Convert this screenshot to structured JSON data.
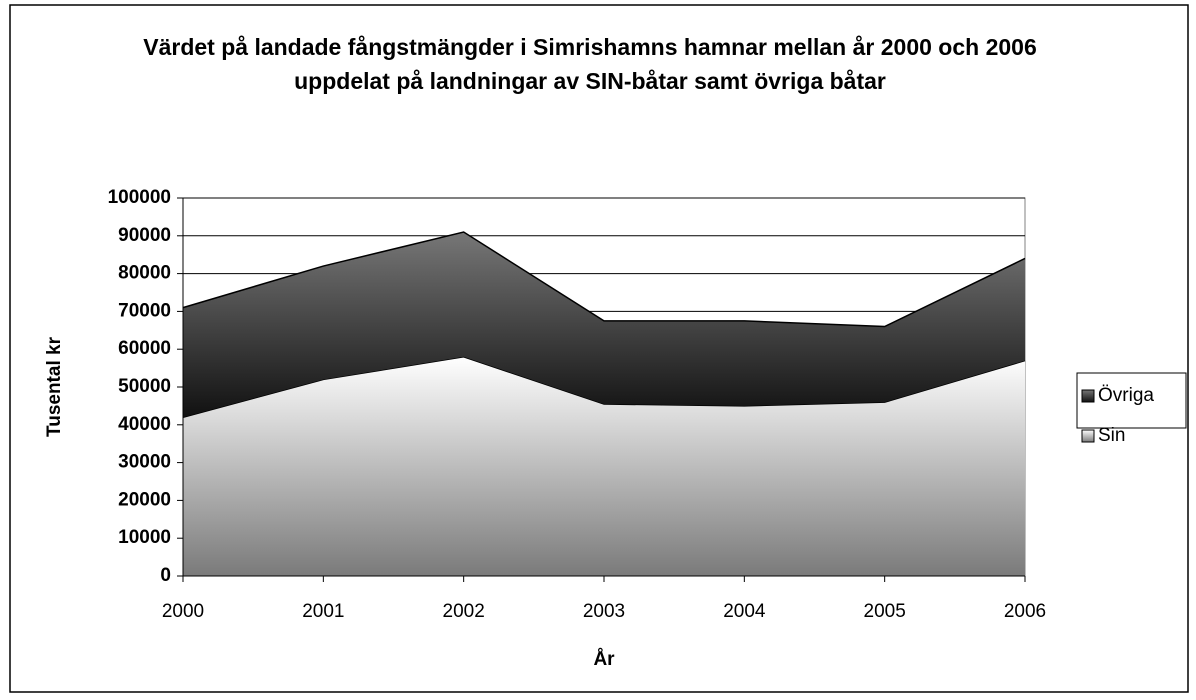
{
  "chart_data": {
    "type": "stacked_area",
    "title": "Värdet på landade fångstmängder i Simrishamns hamnar mellan år 2000 och 2006 uppdelat på landningar av SIN-båtar samt övriga båtar",
    "x_label": "År",
    "y_label": "Tusental kr",
    "categories": [
      "2000",
      "2001",
      "2002",
      "2003",
      "2004",
      "2005",
      "2006"
    ],
    "series": [
      {
        "name": "Sin",
        "color": "#7a7a7a",
        "values": [
          42000,
          52000,
          58000,
          45500,
          45000,
          46000,
          57000
        ]
      },
      {
        "name": "Övriga",
        "color": "#777777",
        "values": [
          29000,
          30000,
          33000,
          22000,
          22500,
          20000,
          27000
        ]
      }
    ],
    "ylim": [
      0,
      100000
    ],
    "yticks": [
      0,
      10000,
      20000,
      30000,
      40000,
      50000,
      60000,
      70000,
      80000,
      90000,
      100000
    ],
    "grid": true,
    "legend": "right"
  }
}
